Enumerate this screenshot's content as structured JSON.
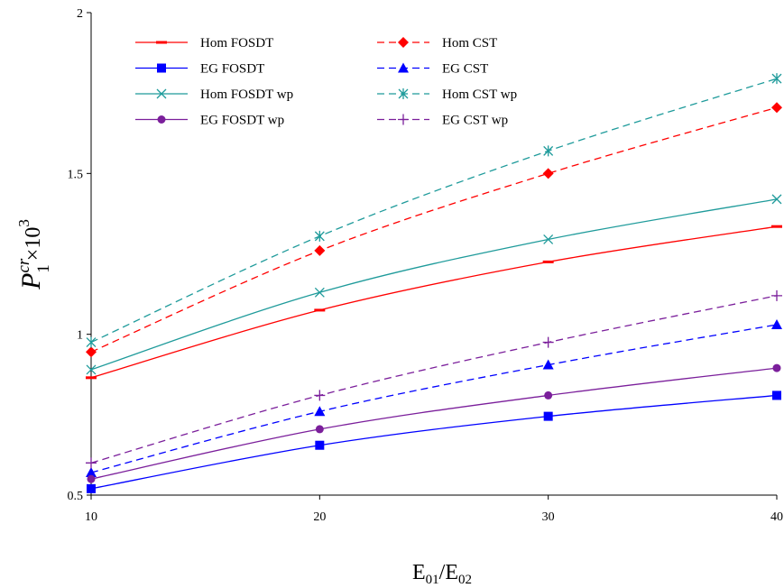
{
  "chart_data": {
    "type": "line",
    "xlabel": {
      "base": "E",
      "sub1": "01",
      "sep": "/E",
      "sub2": "02"
    },
    "ylabel": {
      "base": "P",
      "sub": "1",
      "sup": "cr",
      "tail": "×10",
      "exp": "3"
    },
    "xlim": [
      10,
      40
    ],
    "ylim": [
      0.5,
      2
    ],
    "xticks": [
      10,
      20,
      30,
      40
    ],
    "yticks": [
      0.5,
      1,
      1.5,
      2
    ],
    "ytick_labels": [
      "0.5",
      "1",
      "1.5",
      "2"
    ],
    "xtick_labels": [
      "10",
      "20",
      "30",
      "40"
    ],
    "x": [
      10,
      20,
      30,
      40
    ],
    "grid": false,
    "legend_position": "top-left",
    "series": [
      {
        "name": "Hom FOSDT",
        "color": "#ff0000",
        "dash": "solid",
        "marker": "dash",
        "values": [
          0.865,
          1.075,
          1.225,
          1.335
        ]
      },
      {
        "name": "Hom CST",
        "color": "#ff0000",
        "dash": "dashed",
        "marker": "diamond",
        "values": [
          0.945,
          1.26,
          1.5,
          1.705
        ]
      },
      {
        "name": "EG FOSDT",
        "color": "#0000ff",
        "dash": "solid",
        "marker": "square",
        "values": [
          0.52,
          0.655,
          0.745,
          0.81
        ]
      },
      {
        "name": "EG CST",
        "color": "#0000ff",
        "dash": "dashed",
        "marker": "triangle",
        "values": [
          0.57,
          0.76,
          0.905,
          1.03
        ]
      },
      {
        "name": "Hom FOSDT wp",
        "color": "#1f9b9b",
        "dash": "solid",
        "marker": "x",
        "values": [
          0.89,
          1.13,
          1.295,
          1.42
        ]
      },
      {
        "name": "Hom CST wp",
        "color": "#1f9b9b",
        "dash": "dashed",
        "marker": "asterisk",
        "values": [
          0.975,
          1.305,
          1.57,
          1.795
        ]
      },
      {
        "name": "EG FOSDT wp",
        "color": "#7b1f9b",
        "dash": "solid",
        "marker": "circle",
        "values": [
          0.55,
          0.705,
          0.81,
          0.895
        ]
      },
      {
        "name": "EG CST wp",
        "color": "#7b1f9b",
        "dash": "dashed",
        "marker": "plus",
        "values": [
          0.6,
          0.81,
          0.975,
          1.12
        ]
      }
    ]
  }
}
